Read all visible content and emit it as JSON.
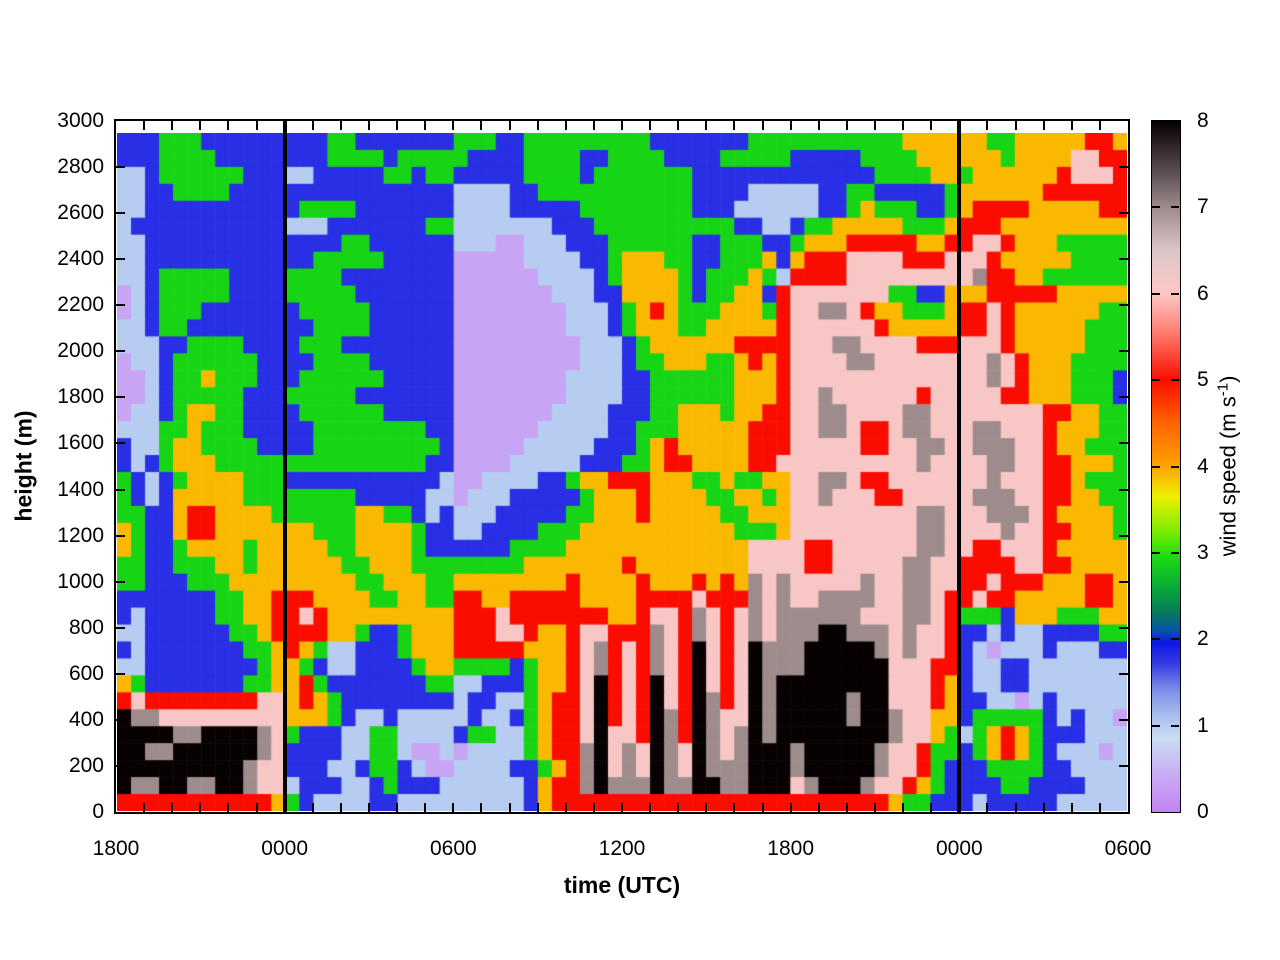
{
  "x_axis": {
    "title": "time (UTC)",
    "tick_labels": [
      "1800",
      "0000",
      "0600",
      "1200",
      "1800",
      "0000",
      "0600"
    ],
    "minor_ticks_per_interval": 6
  },
  "y_axis": {
    "title": "height (m)",
    "tick_labels": [
      "0",
      "200",
      "400",
      "600",
      "800",
      "1000",
      "1200",
      "1400",
      "1600",
      "1800",
      "2000",
      "2200",
      "2400",
      "2600",
      "2800",
      "3000"
    ],
    "min": 0,
    "max": 3000
  },
  "colorbar": {
    "title_pre": "wind speed (m s",
    "title_sup": "-1",
    "title_post": ")",
    "tick_labels": [
      "0",
      "1",
      "2",
      "3",
      "4",
      "5",
      "6",
      "7",
      "8"
    ],
    "min": 0,
    "max": 8,
    "palette_stops": [
      [
        0.0,
        "#c383f2"
      ],
      [
        0.45,
        "#c9aef4"
      ],
      [
        0.85,
        "#c9def2"
      ],
      [
        1.1,
        "#a9c0ee"
      ],
      [
        1.4,
        "#7e90e8"
      ],
      [
        1.7,
        "#3a3fe4"
      ],
      [
        1.95,
        "#0d17e6"
      ],
      [
        2.1,
        "#0b55a9"
      ],
      [
        2.3,
        "#077a5e"
      ],
      [
        2.6,
        "#09ab38"
      ],
      [
        2.95,
        "#19dc0f"
      ],
      [
        3.25,
        "#7cec00"
      ],
      [
        3.65,
        "#eef000"
      ],
      [
        4.0,
        "#ffa300"
      ],
      [
        4.5,
        "#ff6400"
      ],
      [
        5.0,
        "#fa0d00"
      ],
      [
        5.55,
        "#ff7c6e"
      ],
      [
        6.0,
        "#ffc6c5"
      ],
      [
        6.5,
        "#ddc6c7"
      ],
      [
        7.0,
        "#9e8c8d"
      ],
      [
        7.5,
        "#4f4345"
      ],
      [
        8.0,
        "#070102"
      ]
    ]
  },
  "chart_data": {
    "type": "heatmap",
    "title": "",
    "xlabel": "time (UTC)",
    "ylabel": "height (m)",
    "zlabel": "wind speed (m s^-1)",
    "x_tick_labels": [
      "1800",
      "0000",
      "0600",
      "1200",
      "1800",
      "0000",
      "0600"
    ],
    "x_span_hours": 36,
    "ylim": [
      0,
      3000
    ],
    "zlim": [
      0,
      8
    ],
    "grid": false,
    "legend_position": "right-colorbar",
    "midnight_line_tick_indices": [
      1,
      5
    ],
    "cols": 72,
    "rows": 40,
    "col_duration_minutes": 30,
    "row_height_m": 75,
    "rows_order": "top-to-bottom",
    "digit_values": {
      "0": 0.35,
      "1": 1.0,
      "2": 1.8,
      "3": 2.9,
      "4": 3.9,
      "5": 5.0,
      "6": 6.1,
      "7": 7.0,
      "8": 8.0
    },
    "values": [
      "222333222222222332222222333223333333332222222333333333334444443344444554",
      "222333322222222333323333322223333223333222233333222223333444444344446655",
      "112333333222112222233233222223333233333332222222222222333344344444456665",
      "112233332222222222222222111122333333333332222111112233222223444444555555",
      "112222222222233332222222111122222333333332221111112234333223455554444455",
      "122222222222111222222233111111122233333333332211233444443334555444444444",
      "112222222222222233222222111001112223333332233322344455555445566544433333",
      "112222222222223333322222000001111223444332233342455566665556665444443333",
      "112333332222333322222222000000111123444432333431555566666666675544333333",
      "012333332222333332222222000000011122444432334425666666633224445555544444",
      "012333222222233333222222000000001112345433344435667765443334556544444433",
      "112332222222223333222222000000001112344433444445666666544444556544444333",
      "111223333222233322222222000000000111234444445555666776666555666544444333",
      "011233333322223333222222000000000111233444334545666677666666667654443333",
      "001233433322233333322222000000001111223333334445666666666666667654443332",
      "001233333222333332222222000000001111223333334445667666666566666554443332",
      "011234433222233333322222000000011112223344434455667766667766666666554433",
      "111334333222223333333322000000111112233344444555667765567766677666544433",
      "211344333322223333333332000001111122234544444555666665566776677766544333",
      "212344433333333333333322000011111222334554444556666666666766667766554443",
      "321234444333222222222221001111223445554443343344667765566666667666554333",
      "321244444333333332222211011122222344454444334434667666556666677766554433",
      "332245544443333334433212111222223344454444433444666666666776667776544443",
      "432245544444443334444322112222333444444444443334666666666776666766554443",
      "432234444344444334444322222233334444444444444666655666666776655666544444",
      "332233344344444433444333333334444444544444444666655666667766555566554444",
      "332223334444444443344433444444445444454445454767666667667766556555444554",
      "222222233445554444334433554455555444455556555767667777667765565544444554",
      "212222233445565444444444555655555554456657656767777776667765333244433344",
      "112222223345555443223444555665445665557657656767778877767665221211222233",
      "212222222334543112223444555554445675657658656877788888767665210111211122",
      "112222222234432112222344333323445675657658656877788888866655211221111111",
      "432222222334453222222233112223445685658658656878888888866654211221111111",
      "565555555566454322222222122113455685658658756878888878866654221101211111",
      "877666666666444321121111121123455685658758766878888878876644233333212110",
      "888877888876322211331111233113455686658758767878888888876643134543222111",
      "887788888876222211331001011113455786768768767888788888766533234543211101",
      "888888888766222112332100111122345786768768777888788888766532223333221111",
      "877887788766122211232221111112455787778778877888678887665432222332222111",
      "555555555554321111221111111112455555555555555555555555543322212222211111"
    ]
  }
}
